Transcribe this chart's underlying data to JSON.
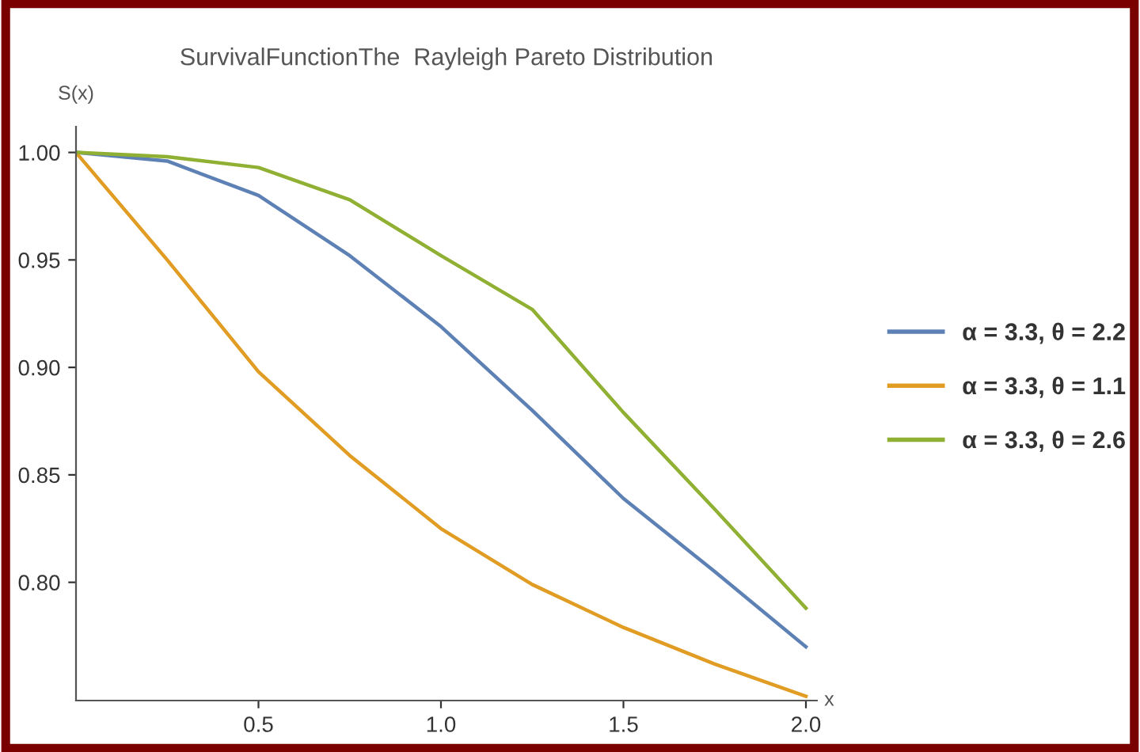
{
  "chart_data": {
    "type": "line",
    "title": "SurvivalFunctionThe  Rayleigh Pareto Distribution",
    "xlabel": "x",
    "ylabel": "S(x)",
    "x": [
      0,
      0.25,
      0.5,
      0.75,
      1.0,
      1.25,
      1.5,
      1.75,
      2.0
    ],
    "series": [
      {
        "name": "α = 3.3, θ = 2.2",
        "color": "#5e81b5",
        "values": [
          1.0,
          0.996,
          0.98,
          0.952,
          0.919,
          0.88,
          0.839,
          0.805,
          0.77
        ]
      },
      {
        "name": "α = 3.3, θ = 1.1",
        "color": "#e19c24",
        "values": [
          1.0,
          0.95,
          0.898,
          0.859,
          0.825,
          0.799,
          0.779,
          0.762,
          0.747
        ]
      },
      {
        "name": "α = 3.3, θ = 2.6",
        "color": "#8fb032",
        "values": [
          1.0,
          0.998,
          0.993,
          0.978,
          0.952,
          0.927,
          0.879,
          0.834,
          0.788
        ]
      }
    ],
    "xlim": [
      0,
      2.03
    ],
    "ylim": [
      0.745,
      1.012
    ],
    "xticks": [
      {
        "value": 0.5,
        "label": "0.5"
      },
      {
        "value": 1.0,
        "label": "1.0"
      },
      {
        "value": 1.5,
        "label": "1.5"
      },
      {
        "value": 2.0,
        "label": "2.0"
      }
    ],
    "yticks": [
      {
        "value": 0.8,
        "label": "0.80"
      },
      {
        "value": 0.85,
        "label": "0.85"
      },
      {
        "value": 0.9,
        "label": "0.90"
      },
      {
        "value": 0.95,
        "label": "0.95"
      },
      {
        "value": 1.0,
        "label": "1.00"
      }
    ],
    "grid": false,
    "legend": "right",
    "marker": "none",
    "line_style": "solid"
  }
}
